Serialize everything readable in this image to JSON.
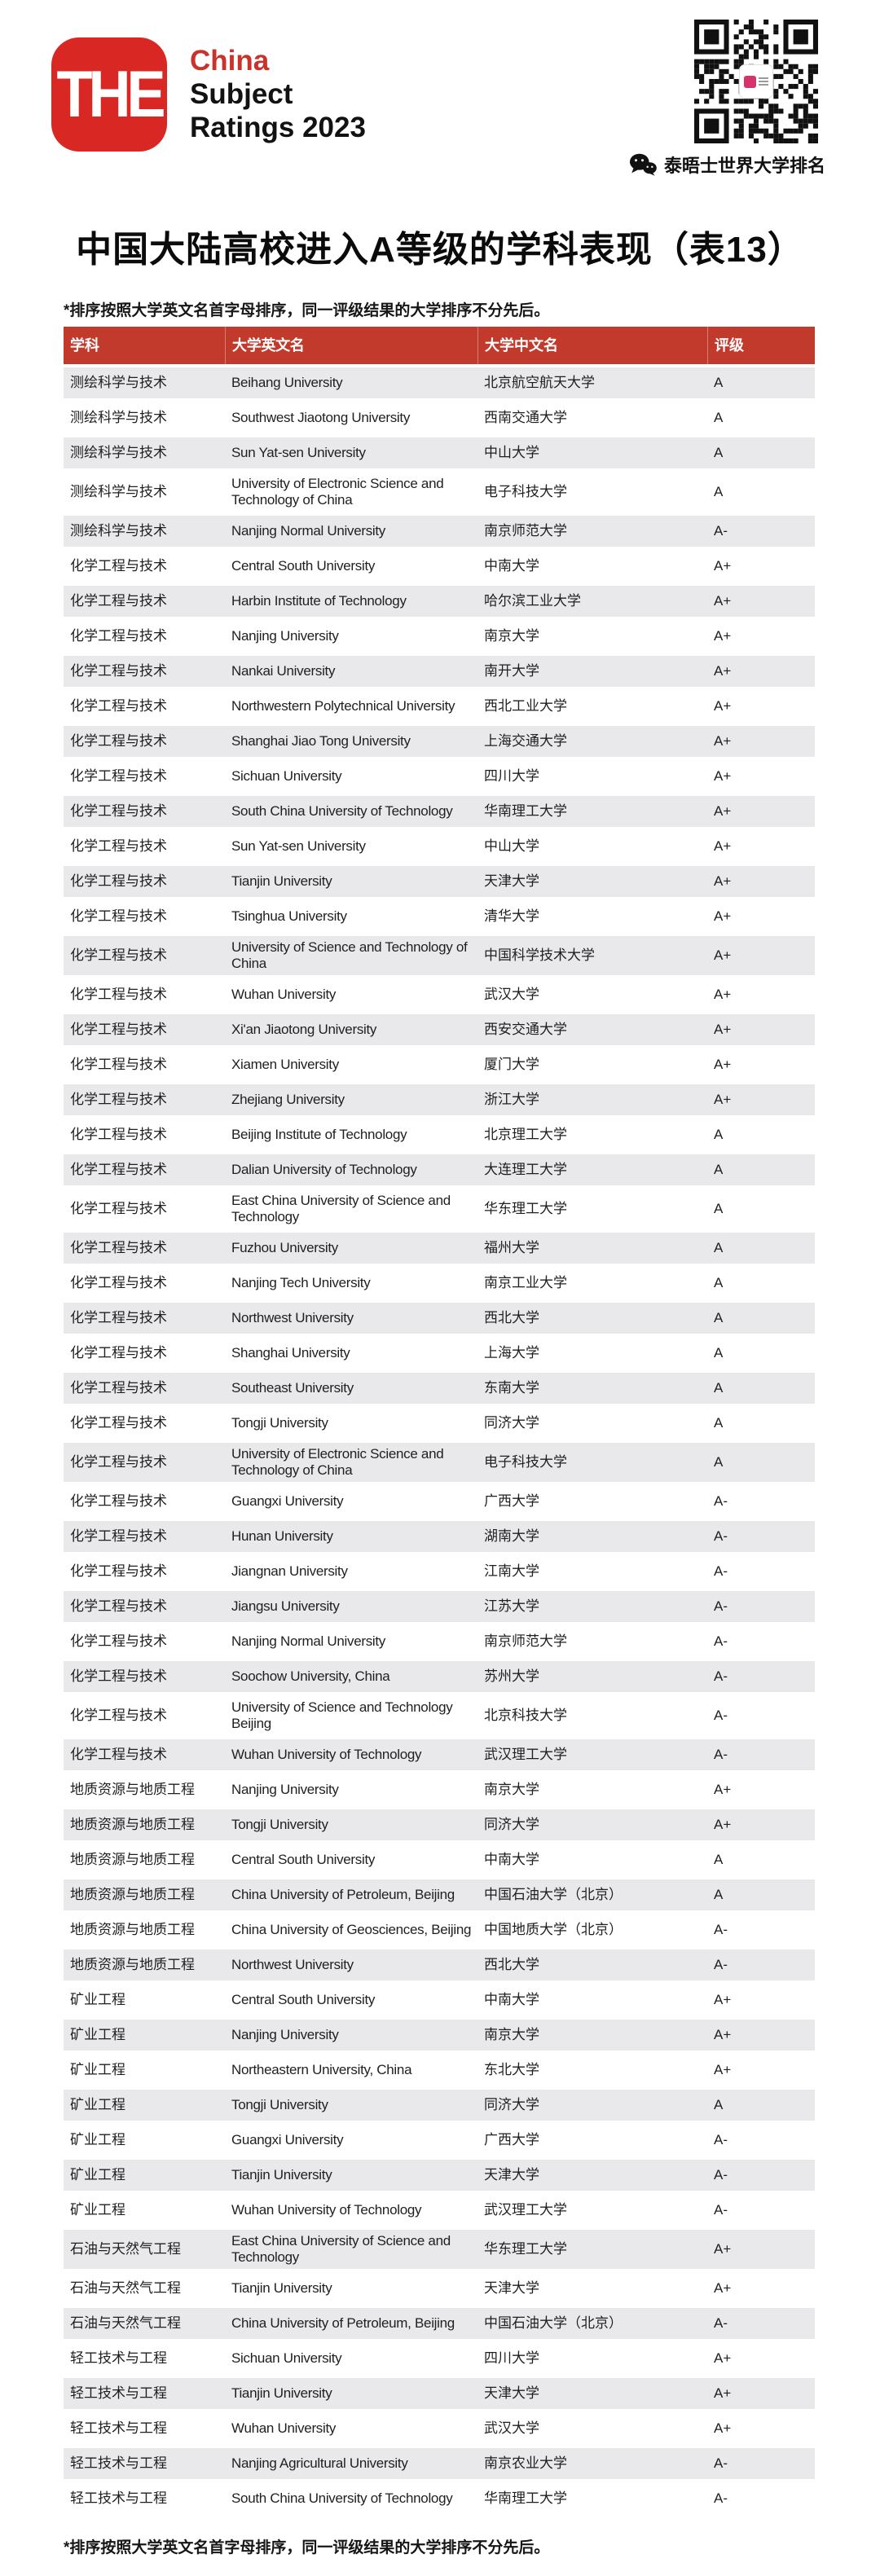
{
  "brand": {
    "logo_text": "THE",
    "line1": "China",
    "line2": "Subject",
    "line3": "Ratings 2023"
  },
  "qr": {
    "caption": "泰晤士世界大学排名"
  },
  "title": "中国大陆高校进入A等级的学科表现（表13）",
  "sort_note": "*排序按照大学英文名首字母排序，同一评级结果的大学排序不分先后。",
  "colors": {
    "header_red": "#c13a2c",
    "logo_red": "#d92823",
    "brand_red": "#c8342b",
    "row_alt_gray": "#e9e9eb"
  },
  "table": {
    "headers": [
      "学科",
      "大学英文名",
      "大学中文名",
      "评级"
    ],
    "rows": [
      [
        "测绘科学与技术",
        "Beihang University",
        "北京航空航天大学",
        "A"
      ],
      [
        "测绘科学与技术",
        "Southwest Jiaotong University",
        "西南交通大学",
        "A"
      ],
      [
        "测绘科学与技术",
        "Sun Yat-sen University",
        "中山大学",
        "A"
      ],
      [
        "测绘科学与技术",
        "University of Electronic Science and Technology of China",
        "电子科技大学",
        "A"
      ],
      [
        "测绘科学与技术",
        "Nanjing Normal University",
        "南京师范大学",
        "A-"
      ],
      [
        "化学工程与技术",
        "Central South University",
        "中南大学",
        "A+"
      ],
      [
        "化学工程与技术",
        "Harbin Institute of Technology",
        "哈尔滨工业大学",
        "A+"
      ],
      [
        "化学工程与技术",
        "Nanjing University",
        "南京大学",
        "A+"
      ],
      [
        "化学工程与技术",
        "Nankai University",
        "南开大学",
        "A+"
      ],
      [
        "化学工程与技术",
        "Northwestern Polytechnical University",
        "西北工业大学",
        "A+"
      ],
      [
        "化学工程与技术",
        "Shanghai Jiao Tong University",
        "上海交通大学",
        "A+"
      ],
      [
        "化学工程与技术",
        "Sichuan University",
        "四川大学",
        "A+"
      ],
      [
        "化学工程与技术",
        "South China University of Technology",
        "华南理工大学",
        "A+"
      ],
      [
        "化学工程与技术",
        "Sun Yat-sen University",
        "中山大学",
        "A+"
      ],
      [
        "化学工程与技术",
        "Tianjin University",
        "天津大学",
        "A+"
      ],
      [
        "化学工程与技术",
        "Tsinghua University",
        "清华大学",
        "A+"
      ],
      [
        "化学工程与技术",
        "University of Science and Technology of China",
        "中国科学技术大学",
        "A+"
      ],
      [
        "化学工程与技术",
        "Wuhan University",
        "武汉大学",
        "A+"
      ],
      [
        "化学工程与技术",
        "Xi'an Jiaotong University",
        "西安交通大学",
        "A+"
      ],
      [
        "化学工程与技术",
        "Xiamen University",
        "厦门大学",
        "A+"
      ],
      [
        "化学工程与技术",
        "Zhejiang University",
        "浙江大学",
        "A+"
      ],
      [
        "化学工程与技术",
        "Beijing Institute of Technology",
        "北京理工大学",
        "A"
      ],
      [
        "化学工程与技术",
        "Dalian University of Technology",
        "大连理工大学",
        "A"
      ],
      [
        "化学工程与技术",
        "East China University of Science and Technology",
        "华东理工大学",
        "A"
      ],
      [
        "化学工程与技术",
        "Fuzhou University",
        "福州大学",
        "A"
      ],
      [
        "化学工程与技术",
        "Nanjing Tech University",
        "南京工业大学",
        "A"
      ],
      [
        "化学工程与技术",
        "Northwest University",
        "西北大学",
        "A"
      ],
      [
        "化学工程与技术",
        "Shanghai University",
        "上海大学",
        "A"
      ],
      [
        "化学工程与技术",
        "Southeast University",
        "东南大学",
        "A"
      ],
      [
        "化学工程与技术",
        "Tongji University",
        "同济大学",
        "A"
      ],
      [
        "化学工程与技术",
        "University of Electronic Science and Technology of China",
        "电子科技大学",
        "A"
      ],
      [
        "化学工程与技术",
        "Guangxi University",
        "广西大学",
        "A-"
      ],
      [
        "化学工程与技术",
        "Hunan University",
        "湖南大学",
        "A-"
      ],
      [
        "化学工程与技术",
        "Jiangnan University",
        "江南大学",
        "A-"
      ],
      [
        "化学工程与技术",
        "Jiangsu University",
        "江苏大学",
        "A-"
      ],
      [
        "化学工程与技术",
        "Nanjing Normal University",
        "南京师范大学",
        "A-"
      ],
      [
        "化学工程与技术",
        "Soochow University, China",
        "苏州大学",
        "A-"
      ],
      [
        "化学工程与技术",
        "University of Science and Technology Beijing",
        "北京科技大学",
        "A-"
      ],
      [
        "化学工程与技术",
        "Wuhan University of Technology",
        "武汉理工大学",
        "A-"
      ],
      [
        "地质资源与地质工程",
        "Nanjing University",
        "南京大学",
        "A+"
      ],
      [
        "地质资源与地质工程",
        "Tongji University",
        "同济大学",
        "A+"
      ],
      [
        "地质资源与地质工程",
        "Central South University",
        "中南大学",
        "A"
      ],
      [
        "地质资源与地质工程",
        "China University of Petroleum, Beijing",
        "中国石油大学（北京）",
        "A"
      ],
      [
        "地质资源与地质工程",
        "China University of Geosciences, Beijing",
        "中国地质大学（北京）",
        "A-"
      ],
      [
        "地质资源与地质工程",
        "Northwest University",
        "西北大学",
        "A-"
      ],
      [
        "矿业工程",
        "Central South University",
        "中南大学",
        "A+"
      ],
      [
        "矿业工程",
        "Nanjing University",
        "南京大学",
        "A+"
      ],
      [
        "矿业工程",
        "Northeastern University, China",
        "东北大学",
        "A+"
      ],
      [
        "矿业工程",
        "Tongji University",
        "同济大学",
        "A"
      ],
      [
        "矿业工程",
        "Guangxi University",
        "广西大学",
        "A-"
      ],
      [
        "矿业工程",
        "Tianjin University",
        "天津大学",
        "A-"
      ],
      [
        "矿业工程",
        "Wuhan University of Technology",
        "武汉理工大学",
        "A-"
      ],
      [
        "石油与天然气工程",
        "East China University of Science and Technology",
        "华东理工大学",
        "A+"
      ],
      [
        "石油与天然气工程",
        "Tianjin University",
        "天津大学",
        "A+"
      ],
      [
        "石油与天然气工程",
        "China University of Petroleum, Beijing",
        "中国石油大学（北京）",
        "A-"
      ],
      [
        "轻工技术与工程",
        "Sichuan University",
        "四川大学",
        "A+"
      ],
      [
        "轻工技术与工程",
        "Tianjin University",
        "天津大学",
        "A+"
      ],
      [
        "轻工技术与工程",
        "Wuhan University",
        "武汉大学",
        "A+"
      ],
      [
        "轻工技术与工程",
        "Nanjing Agricultural University",
        "南京农业大学",
        "A-"
      ],
      [
        "轻工技术与工程",
        "South China University of Technology",
        "华南理工大学",
        "A-"
      ]
    ]
  }
}
